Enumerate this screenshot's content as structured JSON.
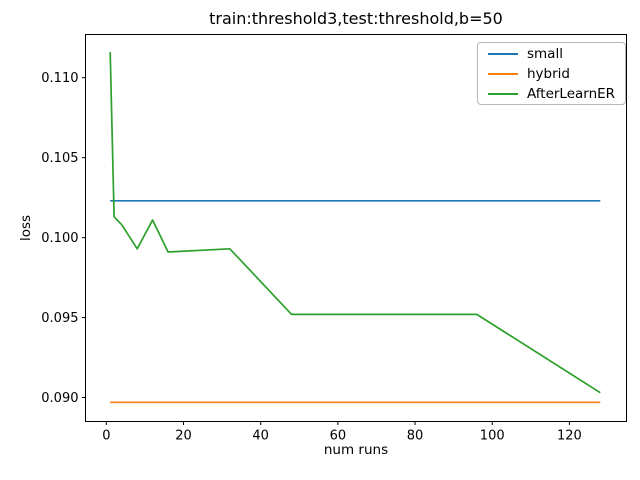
{
  "chart_data": {
    "type": "line",
    "title": "train:threshold3,test:threshold,b=50",
    "xlabel": "num runs",
    "ylabel": "loss",
    "xlim": [
      -5.4,
      134.8
    ],
    "ylim": [
      0.0885,
      0.1127
    ],
    "xticks": [
      0,
      20,
      40,
      60,
      80,
      100,
      120
    ],
    "yticks": [
      0.09,
      0.095,
      0.1,
      0.105,
      0.11
    ],
    "ytick_labels": [
      "0.090",
      "0.095",
      "0.100",
      "0.105",
      "0.110"
    ],
    "grid": false,
    "legend_position": "upper right",
    "frame_color": "#000000",
    "series": [
      {
        "name": "small",
        "color": "#1f77b4",
        "x": [
          1,
          128
        ],
        "y": [
          0.1023,
          0.1023
        ]
      },
      {
        "name": "hybrid",
        "color": "#ff7f0e",
        "x": [
          1,
          128
        ],
        "y": [
          0.0897,
          0.0897
        ]
      },
      {
        "name": "AfterLearnER",
        "color": "#2ca02c",
        "x": [
          1,
          2,
          4,
          8,
          12,
          16,
          32,
          48,
          96,
          128
        ],
        "y": [
          0.1116,
          0.1013,
          0.1008,
          0.0993,
          0.1011,
          0.0991,
          0.0993,
          0.0952,
          0.0952,
          0.0903
        ]
      }
    ]
  }
}
